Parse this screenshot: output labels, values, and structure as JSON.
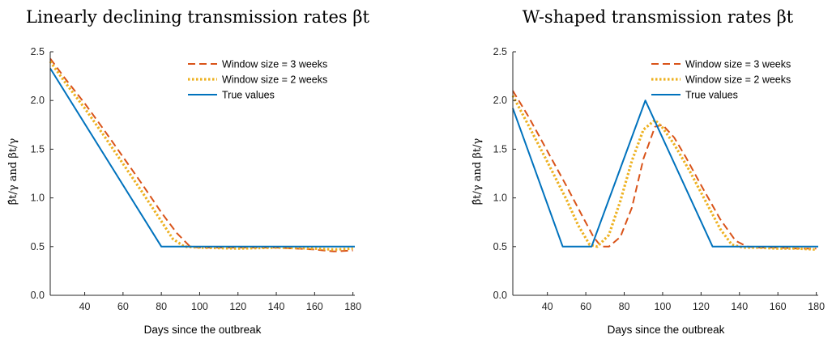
{
  "colors": {
    "window3": "#d95319",
    "window2": "#edb120",
    "truth": "#0072bd"
  },
  "chart_data": [
    {
      "type": "line",
      "title": "Linearly declining transmission rates βt",
      "xlabel": "Days since the outbreak",
      "ylabel": "β̂t/γ and βt/γ",
      "xlim": [
        22,
        181
      ],
      "ylim": [
        0,
        2.5
      ],
      "xticks": [
        40,
        60,
        80,
        100,
        120,
        140,
        160,
        180
      ],
      "yticks": [
        0.0,
        0.5,
        1.0,
        1.5,
        2.0,
        2.5
      ],
      "ytick_labels": [
        "0.0",
        "0.5",
        "1.0",
        "1.5",
        "2.0",
        "2.5"
      ],
      "legend_position": "top-right",
      "series": [
        {
          "name": "Window size = 3 weeks",
          "style": "dashed",
          "color": "#d95319",
          "x": [
            22,
            30,
            40,
            50,
            60,
            70,
            80,
            88,
            95,
            100,
            120,
            140,
            160,
            170,
            180
          ],
          "y": [
            2.43,
            2.22,
            1.97,
            1.7,
            1.42,
            1.14,
            0.85,
            0.64,
            0.5,
            0.49,
            0.49,
            0.49,
            0.47,
            0.45,
            0.46
          ]
        },
        {
          "name": "Window size = 2 weeks",
          "style": "dotted",
          "color": "#edb120",
          "x": [
            22,
            30,
            40,
            50,
            60,
            70,
            80,
            86,
            92,
            100,
            120,
            140,
            160,
            170,
            180
          ],
          "y": [
            2.4,
            2.18,
            1.92,
            1.64,
            1.35,
            1.06,
            0.76,
            0.58,
            0.5,
            0.49,
            0.48,
            0.49,
            0.48,
            0.47,
            0.48
          ]
        },
        {
          "name": "True values",
          "style": "solid",
          "color": "#0072bd",
          "x": [
            22,
            80,
            181
          ],
          "y": [
            2.33,
            0.5,
            0.5
          ]
        }
      ]
    },
    {
      "type": "line",
      "title": "W-shaped transmission rates βt",
      "xlabel": "Days since the outbreak",
      "ylabel": "β̂t/γ and βt/γ",
      "xlim": [
        22,
        181
      ],
      "ylim": [
        0,
        2.5
      ],
      "xticks": [
        40,
        60,
        80,
        100,
        120,
        140,
        160,
        180
      ],
      "yticks": [
        0.0,
        0.5,
        1.0,
        1.5,
        2.0,
        2.5
      ],
      "ytick_labels": [
        "0.0",
        "0.5",
        "1.0",
        "1.5",
        "2.0",
        "2.5"
      ],
      "legend_position": "top-right",
      "series": [
        {
          "name": "Window size = 3 weeks",
          "style": "dashed",
          "color": "#d95319",
          "x": [
            22,
            30,
            40,
            50,
            58,
            64,
            68,
            72,
            78,
            84,
            90,
            96,
            100,
            106,
            112,
            120,
            130,
            138,
            144,
            150,
            160,
            170,
            180
          ],
          "y": [
            2.1,
            1.84,
            1.48,
            1.12,
            0.82,
            0.6,
            0.5,
            0.5,
            0.6,
            0.9,
            1.4,
            1.73,
            1.75,
            1.62,
            1.42,
            1.13,
            0.78,
            0.56,
            0.5,
            0.49,
            0.49,
            0.48,
            0.48
          ]
        },
        {
          "name": "Window size = 2 weeks",
          "style": "dotted",
          "color": "#edb120",
          "x": [
            22,
            30,
            40,
            50,
            56,
            62,
            66,
            72,
            78,
            84,
            90,
            96,
            100,
            106,
            114,
            122,
            130,
            136,
            142,
            150,
            160,
            170,
            180
          ],
          "y": [
            2.05,
            1.75,
            1.37,
            0.98,
            0.72,
            0.52,
            0.5,
            0.62,
            0.97,
            1.38,
            1.7,
            1.8,
            1.72,
            1.55,
            1.28,
            0.98,
            0.68,
            0.52,
            0.49,
            0.49,
            0.48,
            0.48,
            0.47
          ]
        },
        {
          "name": "True values",
          "style": "solid",
          "color": "#0072bd",
          "x": [
            22,
            48,
            63,
            91,
            126,
            181
          ],
          "y": [
            1.92,
            0.5,
            0.5,
            2.0,
            0.5,
            0.5
          ]
        }
      ]
    }
  ]
}
